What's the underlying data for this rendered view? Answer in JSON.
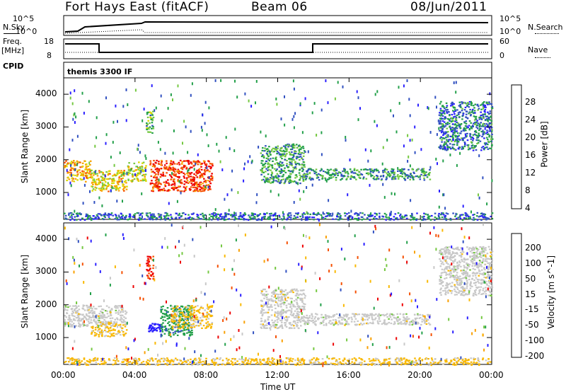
{
  "header": {
    "station": "Fort Hays East (fitACF)",
    "beam": "Beam 06",
    "date": "08/Jun/2011"
  },
  "status_panels": {
    "nsky_label": "N.Sky",
    "nsearch_label": "N.Search",
    "noise_ticks_left": [
      "10^5",
      "10^0"
    ],
    "noise_ticks_right": [
      "10^5",
      "10^0"
    ],
    "freq_label_top": "Freq.",
    "freq_label_unit": "[MHz]",
    "freq_ticks": [
      "18",
      "8"
    ],
    "nave_label": "Nave",
    "nave_ticks": [
      "60",
      "0"
    ],
    "cpid_label": "CPID",
    "cpid_text": "themis 3300 IF"
  },
  "chart_data": [
    {
      "type": "heatmap",
      "title": "",
      "xlabel": "Time UT",
      "ylabel": "Slant Range [km]",
      "x_ticks": [
        "00:00",
        "04:00",
        "08:00",
        "12:00",
        "16:00",
        "20:00",
        "00:00"
      ],
      "xlim_hours": [
        0,
        24
      ],
      "y_ticks": [
        "1000",
        "2000",
        "3000",
        "4000"
      ],
      "ylim": [
        180,
        4500
      ],
      "colorbar": {
        "label": "Power [dB]",
        "ticks": [
          "28",
          "24",
          "20",
          "16",
          "12",
          "8",
          "4"
        ],
        "range": [
          0,
          30
        ],
        "colors": [
          "#2a1fff",
          "#3050c0",
          "#23a04a",
          "#74c840",
          "#d8d800",
          "#f9a000",
          "#f55000",
          "#ee0000"
        ]
      },
      "echo_regions": [
        {
          "t0": 0.0,
          "t1": 1.5,
          "r0": 1350,
          "r1": 2000,
          "power": 20
        },
        {
          "t0": 1.5,
          "t1": 3.5,
          "r0": 1050,
          "r1": 1700,
          "power": 18
        },
        {
          "t0": 3.5,
          "t1": 4.6,
          "r0": 1350,
          "r1": 1950,
          "power": 16
        },
        {
          "t0": 4.6,
          "t1": 5.0,
          "r0": 2800,
          "r1": 3500,
          "power": 12
        },
        {
          "t0": 4.8,
          "t1": 8.3,
          "r0": 1050,
          "r1": 2000,
          "power": 26
        },
        {
          "t0": 11.0,
          "t1": 13.5,
          "r0": 1300,
          "r1": 2500,
          "power": 10
        },
        {
          "t0": 13.5,
          "t1": 20.5,
          "r0": 1400,
          "r1": 1750,
          "power": 9
        },
        {
          "t0": 21.0,
          "t1": 24.0,
          "r0": 2300,
          "r1": 3800,
          "power": 7
        },
        {
          "t0": 0.0,
          "t1": 24.0,
          "r0": 180,
          "r1": 400,
          "power": 6
        }
      ]
    },
    {
      "type": "heatmap",
      "title": "",
      "xlabel": "Time UT",
      "ylabel": "Slant Range [km]",
      "x_ticks": [
        "00:00",
        "04:00",
        "08:00",
        "12:00",
        "16:00",
        "20:00",
        "00:00"
      ],
      "xlim_hours": [
        0,
        24
      ],
      "y_ticks": [
        "1000",
        "2000",
        "3000",
        "4000"
      ],
      "ylim": [
        180,
        4500
      ],
      "colorbar": {
        "label": "Velocity [m s^-1]",
        "ticks": [
          "200",
          "100",
          "50",
          "15",
          "-15",
          "-50",
          "-100",
          "-200"
        ],
        "range": [
          -250,
          250
        ],
        "colors": [
          "#ee0000",
          "#f55000",
          "#f9a000",
          "#f9b800",
          "#c8c8c8",
          "#74c840",
          "#23a04a",
          "#3050c0",
          "#2a1fff"
        ]
      },
      "echo_regions": [
        {
          "t0": 0.0,
          "t1": 3.5,
          "r0": 1350,
          "r1": 2000,
          "velocity": 0
        },
        {
          "t0": 1.5,
          "t1": 3.5,
          "r0": 1050,
          "r1": 1500,
          "velocity": -40
        },
        {
          "t0": 4.6,
          "t1": 5.0,
          "r0": 2800,
          "r1": 3500,
          "velocity": -200
        },
        {
          "t0": 4.7,
          "t1": 5.4,
          "r0": 1200,
          "r1": 1450,
          "velocity": 220
        },
        {
          "t0": 5.4,
          "t1": 7.2,
          "r0": 1050,
          "r1": 2000,
          "velocity": 120
        },
        {
          "t0": 6.0,
          "t1": 8.3,
          "r0": 1300,
          "r1": 2000,
          "velocity": -40
        },
        {
          "t0": 11.0,
          "t1": 13.5,
          "r0": 1300,
          "r1": 2500,
          "velocity": 0
        },
        {
          "t0": 13.5,
          "t1": 20.5,
          "r0": 1400,
          "r1": 1750,
          "velocity": 0
        },
        {
          "t0": 21.0,
          "t1": 24.0,
          "r0": 2300,
          "r1": 3800,
          "velocity": 0
        },
        {
          "t0": 0.0,
          "t1": 24.0,
          "r0": 180,
          "r1": 400,
          "velocity": -40
        }
      ]
    }
  ]
}
